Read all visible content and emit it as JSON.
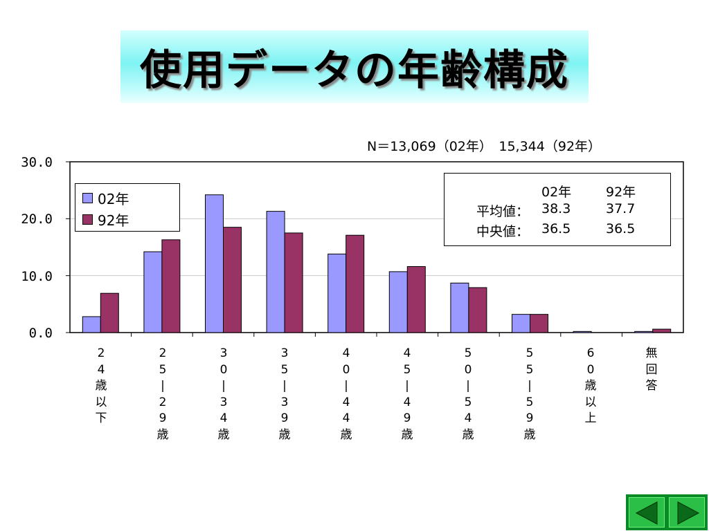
{
  "title": "使用データの年齢構成",
  "note": "N＝13,069（02年）　15,344（92年）",
  "legend": [
    {
      "label": "02年",
      "color": "#9999ff"
    },
    {
      "label": "92年",
      "color": "#993366"
    }
  ],
  "stats": {
    "col1": "02年",
    "col2": "92年",
    "row1_label": "平均値：",
    "row1_v1": "38.3",
    "row1_v2": "37.7",
    "row2_label": "中央値：",
    "row2_v1": "36.5",
    "row2_v2": "36.5"
  },
  "chart_data": {
    "type": "bar",
    "categories": [
      "24歳以下",
      "25−29歳",
      "30−34歳",
      "35−39歳",
      "40−44歳",
      "45−49歳",
      "50−54歳",
      "55−59歳",
      "60歳以上",
      "無回答"
    ],
    "category_labels": [
      "2\n4\n歳\n以\n下",
      "2\n5\n|\n2\n9\n歳",
      "3\n0\n|\n3\n4\n歳",
      "3\n5\n|\n3\n9\n歳",
      "4\n0\n|\n4\n4\n歳",
      "4\n5\n|\n4\n9\n歳",
      "5\n0\n|\n5\n4\n歳",
      "5\n5\n|\n5\n9\n歳",
      "6\n0\n歳\n以\n上",
      "無\n回\n答"
    ],
    "series": [
      {
        "name": "02年",
        "values": [
          2.8,
          14.2,
          24.2,
          21.3,
          13.8,
          10.7,
          8.7,
          3.2,
          0.2,
          0.2
        ]
      },
      {
        "name": "92年",
        "values": [
          6.9,
          16.3,
          18.5,
          17.5,
          17.1,
          11.6,
          7.9,
          3.2,
          0.0,
          0.6
        ]
      }
    ],
    "ylim": [
      0,
      30
    ],
    "yticks": [
      "0.0",
      "10.0",
      "20.0",
      "30.0"
    ],
    "grid": true,
    "legend_position": "top-left"
  },
  "nav": {
    "prev_icon": "triangle-left-icon",
    "next_icon": "triangle-right-icon"
  }
}
